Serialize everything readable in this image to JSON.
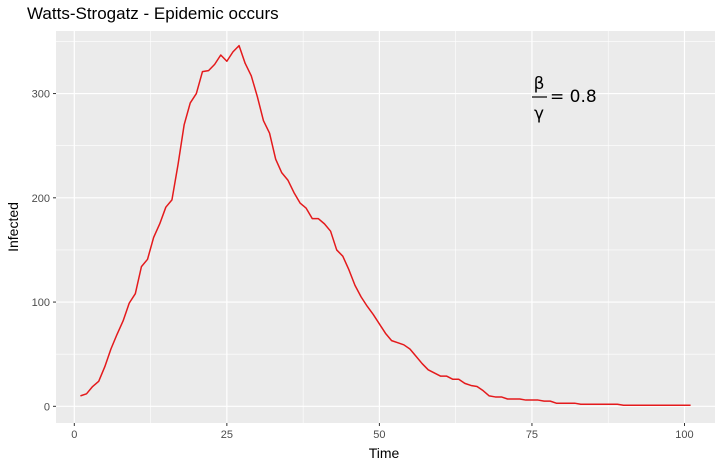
{
  "chart_data": {
    "type": "line",
    "title": "Watts-Strogatz - Epidemic occurs",
    "xlabel": "Time",
    "ylabel": "Infected",
    "xlim": [
      -3,
      105
    ],
    "ylim": [
      -16,
      360
    ],
    "xticks": [
      0,
      25,
      50,
      75,
      100
    ],
    "yticks": [
      0,
      100,
      200,
      300
    ],
    "grid": true,
    "legend": "none",
    "colors": {
      "panel": "#EBEBEB",
      "grid": "#FFFFFF",
      "line": "#E41A1C"
    },
    "annotation": {
      "numerator": "β",
      "denominator": "γ",
      "value": "= 0.8"
    },
    "series": [
      {
        "x": [
          1,
          2,
          3,
          4,
          5,
          6,
          7,
          8,
          9,
          10,
          11,
          12,
          13,
          14,
          15,
          16,
          17,
          18,
          19,
          20,
          21,
          22,
          23,
          24,
          25,
          26,
          27,
          28,
          29,
          30,
          31,
          32,
          33,
          34,
          35,
          36,
          37,
          38,
          39,
          40,
          41,
          42,
          43,
          44,
          45,
          46,
          47,
          48,
          49,
          50,
          51,
          52,
          53,
          54,
          55,
          56,
          57,
          58,
          59,
          60,
          61,
          62,
          63,
          64,
          65,
          66,
          67,
          68,
          69,
          70,
          71,
          72,
          73,
          74,
          75,
          76,
          77,
          78,
          79,
          80,
          81,
          82,
          83,
          84,
          85,
          86,
          87,
          88,
          89,
          90,
          91,
          92,
          93,
          94,
          95,
          96,
          97,
          98,
          99,
          100,
          101
        ],
        "values": [
          10,
          12,
          19,
          24,
          38,
          55,
          69,
          82,
          99,
          108,
          134,
          141,
          162,
          175,
          191,
          198,
          232,
          270,
          291,
          300,
          321,
          322,
          328,
          337,
          331,
          340,
          346,
          329,
          317,
          297,
          274,
          262,
          237,
          224,
          217,
          205,
          195,
          190,
          180,
          180,
          175,
          168,
          150,
          144,
          131,
          116,
          105,
          96,
          88,
          79,
          70,
          63,
          61,
          59,
          55,
          48,
          41,
          35,
          32,
          29,
          29,
          26,
          26,
          22,
          20,
          19,
          15,
          10,
          9,
          9,
          7,
          7,
          7,
          6,
          6,
          6,
          5,
          5,
          3,
          3,
          3,
          3,
          2,
          2,
          2,
          2,
          2,
          2,
          2,
          1,
          1,
          1,
          1,
          1,
          1,
          1,
          1,
          1,
          1,
          1,
          1
        ]
      }
    ]
  }
}
